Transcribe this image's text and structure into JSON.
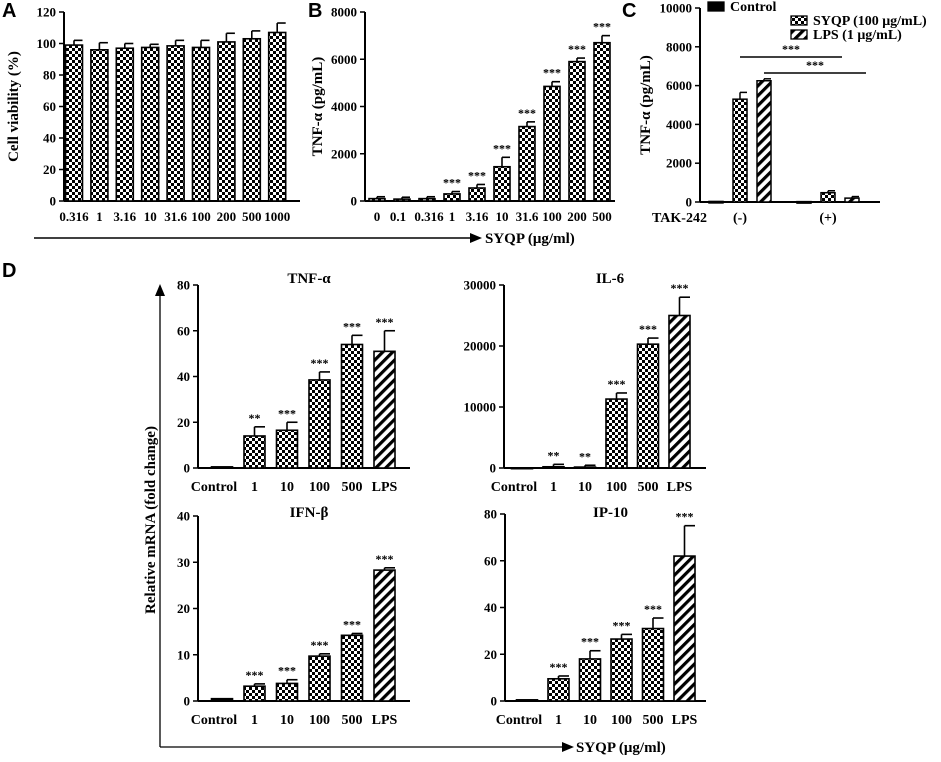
{
  "panel_labels": {
    "a": "A",
    "b": "B",
    "c": "C",
    "d": "D"
  },
  "shared_axis_label": "SYQP (μg/ml)",
  "colors": {
    "ink": "#000000",
    "paper": "#ffffff"
  },
  "chart_data": [
    {
      "id": "A",
      "type": "bar",
      "title": "",
      "xlabel": "",
      "ylabel": "Cell viability (%)",
      "ylim": [
        0,
        120
      ],
      "yticks": [
        0,
        20,
        40,
        60,
        80,
        100,
        120
      ],
      "categories": [
        "0.316",
        "1",
        "3.16",
        "10",
        "31.6",
        "100",
        "200",
        "500",
        "1000"
      ],
      "values": [
        99,
        96,
        97,
        97.5,
        98.5,
        97.5,
        101,
        103,
        107
      ],
      "errors": [
        3,
        4.5,
        3,
        2,
        3.5,
        4.5,
        5.5,
        5,
        6
      ],
      "significance": [
        "",
        "",
        "",
        "",
        "",
        "",
        "",
        "",
        ""
      ],
      "pattern": "checker"
    },
    {
      "id": "B",
      "type": "bar",
      "title": "",
      "xlabel": "SYQP (μg/ml)",
      "ylabel": "TNF-α (pg/mL)",
      "ylim": [
        0,
        8000
      ],
      "yticks": [
        0,
        2000,
        4000,
        6000,
        8000
      ],
      "categories": [
        "0",
        "0.1",
        "0.316",
        "1",
        "3.16",
        "10",
        "31.6",
        "100",
        "200",
        "500"
      ],
      "values": [
        100,
        80,
        100,
        300,
        550,
        1450,
        3150,
        4850,
        5900,
        6700
      ],
      "errors": [
        80,
        80,
        80,
        100,
        150,
        400,
        200,
        200,
        150,
        300
      ],
      "significance": [
        "",
        "",
        "",
        "***",
        "***",
        "***",
        "***",
        "***",
        "***",
        "***"
      ],
      "pattern": "checker"
    },
    {
      "id": "C",
      "type": "bar",
      "title": "",
      "xlabel": "",
      "ylabel": "TNF-α (pg/mL)",
      "ylim": [
        0,
        10000
      ],
      "yticks": [
        0,
        2000,
        4000,
        6000,
        8000,
        10000
      ],
      "group_label": "TAK-242",
      "groups": [
        "(-)",
        "(+)"
      ],
      "series": [
        {
          "name": "Control",
          "pattern": "solid",
          "values": [
            30,
            20
          ],
          "errors": [
            0,
            0
          ]
        },
        {
          "name": "SYQP (100 μg/mL)",
          "pattern": "checker",
          "values": [
            5300,
            480
          ],
          "errors": [
            350,
            100
          ]
        },
        {
          "name": "LPS (1 μg/mL)",
          "pattern": "hatch",
          "values": [
            6250,
            200
          ],
          "errors": [
            100,
            80
          ]
        }
      ],
      "comparisons": [
        {
          "label": "***",
          "between": "SYQP (-) vs SYQP (+)"
        },
        {
          "label": "***",
          "between": "LPS (-) vs LPS (+)"
        }
      ]
    },
    {
      "id": "D-TNF",
      "type": "bar",
      "title": "TNF-α",
      "xlabel": "",
      "ylabel": "Relative mRNA (fold change)",
      "ylim": [
        0,
        80
      ],
      "yticks": [
        0,
        20,
        40,
        60,
        80
      ],
      "categories": [
        "Control",
        "1",
        "10",
        "100",
        "500",
        "LPS"
      ],
      "values": [
        0.5,
        14,
        16.5,
        38.5,
        54,
        51
      ],
      "errors": [
        0,
        4,
        3.5,
        3.5,
        4,
        9
      ],
      "significance": [
        "",
        "**",
        "***",
        "***",
        "***",
        "***"
      ],
      "patterns": [
        "solid",
        "checker",
        "checker",
        "checker",
        "checker",
        "hatch"
      ]
    },
    {
      "id": "D-IL6",
      "type": "bar",
      "title": "IL-6",
      "xlabel": "",
      "ylabel": "Relative mRNA (fold change)",
      "ylim": [
        0,
        30000
      ],
      "yticks": [
        0,
        10000,
        20000,
        30000
      ],
      "categories": [
        "Control",
        "1",
        "10",
        "100",
        "500",
        "LPS"
      ],
      "values": [
        20,
        200,
        150,
        11300,
        20300,
        25000
      ],
      "errors": [
        0,
        400,
        300,
        1000,
        1000,
        3000
      ],
      "significance": [
        "",
        "**",
        "**",
        "***",
        "***",
        "***"
      ],
      "patterns": [
        "solid",
        "checker",
        "checker",
        "checker",
        "checker",
        "hatch"
      ]
    },
    {
      "id": "D-IFNb",
      "type": "bar",
      "title": "IFN-β",
      "xlabel": "",
      "ylabel": "Relative mRNA (fold change)",
      "ylim": [
        0,
        40
      ],
      "yticks": [
        0,
        10,
        20,
        30,
        40
      ],
      "categories": [
        "Control",
        "1",
        "10",
        "100",
        "500",
        "LPS"
      ],
      "values": [
        0.5,
        3.2,
        3.8,
        9.7,
        14.2,
        28.3
      ],
      "errors": [
        0,
        0.5,
        0.8,
        0.5,
        0.4,
        0.5
      ],
      "significance": [
        "",
        "***",
        "***",
        "***",
        "***",
        "***"
      ],
      "patterns": [
        "solid",
        "checker",
        "checker",
        "checker",
        "checker",
        "hatch"
      ]
    },
    {
      "id": "D-IP10",
      "type": "bar",
      "title": "IP-10",
      "xlabel": "SYQP (μg/ml)",
      "ylabel": "Relative mRNA (fold change)",
      "ylim": [
        0,
        80
      ],
      "yticks": [
        0,
        20,
        40,
        60,
        80
      ],
      "categories": [
        "Control",
        "1",
        "10",
        "100",
        "500",
        "LPS"
      ],
      "values": [
        0.5,
        9.5,
        18,
        26.5,
        31,
        62
      ],
      "errors": [
        0,
        1.2,
        3.5,
        2,
        4.5,
        13
      ],
      "significance": [
        "",
        "***",
        "***",
        "***",
        "***",
        "***"
      ],
      "patterns": [
        "solid",
        "checker",
        "checker",
        "checker",
        "checker",
        "hatch"
      ]
    }
  ]
}
